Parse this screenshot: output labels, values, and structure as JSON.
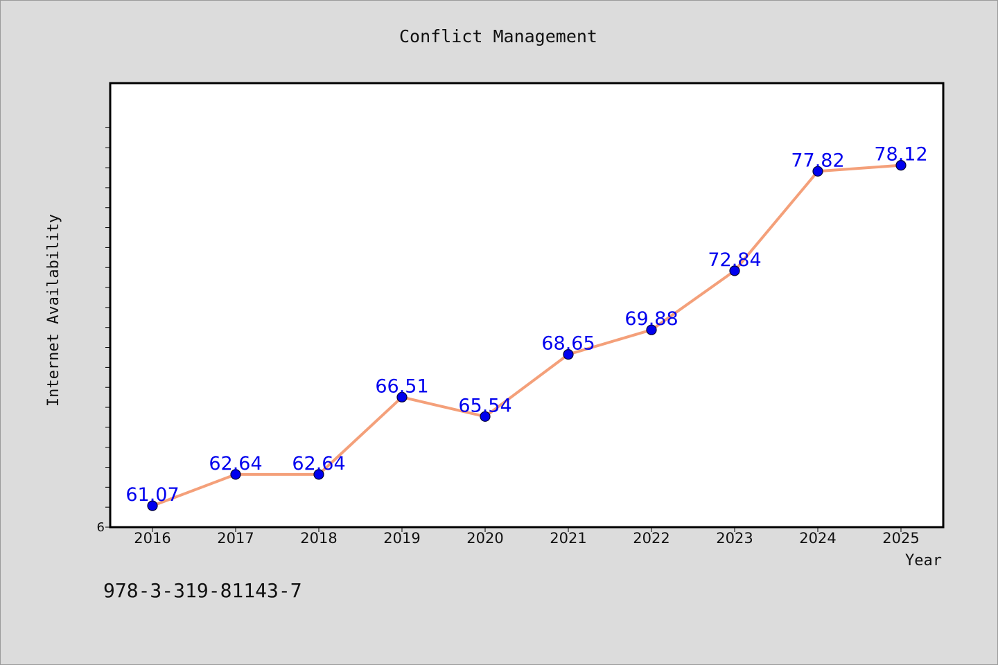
{
  "chart_data": {
    "type": "line",
    "title": "Conflict Management",
    "xlabel": "Year",
    "ylabel": "Internet Availability",
    "x": [
      "2016",
      "2017",
      "2018",
      "2019",
      "2020",
      "2021",
      "2022",
      "2023",
      "2024",
      "2025"
    ],
    "series": [
      {
        "values": [
          61.07,
          62.64,
          62.64,
          66.51,
          65.54,
          68.65,
          69.88,
          72.84,
          77.82,
          78.12
        ],
        "data_labels": [
          "61.07",
          "62.64",
          "62.64",
          "66.51",
          "65.54",
          "68.65",
          "69.88",
          "72.84",
          "77.82",
          "78.12"
        ]
      }
    ],
    "ylim": [
      60,
      80
    ],
    "y_tick_labels": [
      "6"
    ],
    "y_minor_tick_step": 1,
    "grid": false,
    "legend": "none",
    "colors": {
      "line": "#f4a07a",
      "marker": "#0000ee",
      "marker_edge": "#000033",
      "data_label": "#0000ee",
      "plot_bg": "#ffffff",
      "figure_bg": "#dcdcdc"
    }
  },
  "footer": {
    "isbn": "978-3-319-81143-7"
  }
}
